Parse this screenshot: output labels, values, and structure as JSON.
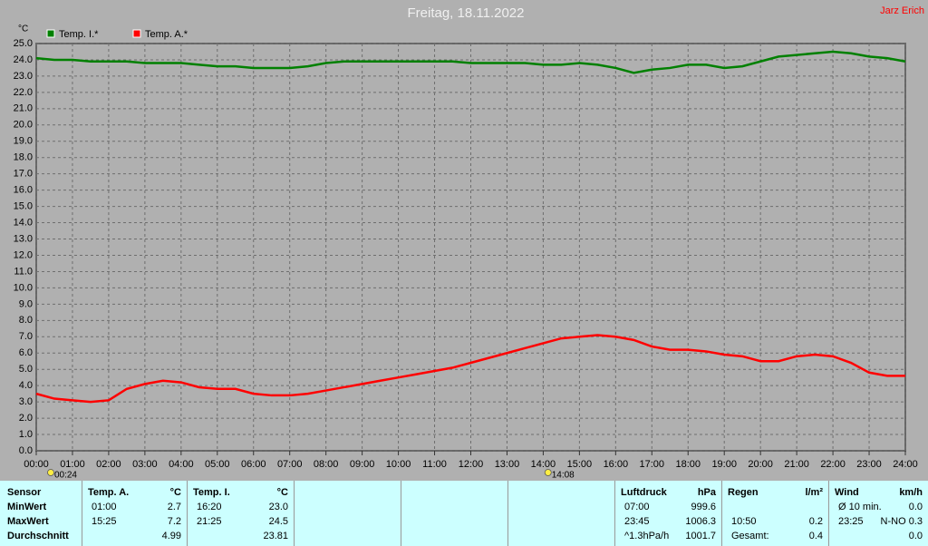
{
  "chart_data": {
    "type": "line",
    "title": "Freitag, 18.11.2022",
    "author": "Jarz Erich",
    "y_unit": "°C",
    "grid": true,
    "x": [
      0,
      0.5,
      1,
      1.5,
      2,
      2.5,
      3,
      3.5,
      4,
      4.5,
      5,
      5.5,
      6,
      6.5,
      7,
      7.5,
      8,
      8.5,
      9,
      9.5,
      10,
      10.5,
      11,
      11.5,
      12,
      12.5,
      13,
      13.5,
      14,
      14.5,
      15,
      15.5,
      16,
      16.5,
      17,
      17.5,
      18,
      18.5,
      19,
      19.5,
      20,
      20.5,
      21,
      21.5,
      22,
      22.5,
      23,
      23.5,
      24
    ],
    "series": [
      {
        "name": "Temp. I.*",
        "color": "#008000",
        "values": [
          24.1,
          24.0,
          24.0,
          23.9,
          23.9,
          23.9,
          23.8,
          23.8,
          23.8,
          23.7,
          23.6,
          23.6,
          23.5,
          23.5,
          23.5,
          23.6,
          23.8,
          23.9,
          23.9,
          23.9,
          23.9,
          23.9,
          23.9,
          23.9,
          23.8,
          23.8,
          23.8,
          23.8,
          23.7,
          23.7,
          23.8,
          23.7,
          23.5,
          23.2,
          23.4,
          23.5,
          23.7,
          23.7,
          23.5,
          23.6,
          23.9,
          24.2,
          24.3,
          24.4,
          24.5,
          24.4,
          24.2,
          24.1,
          23.9
        ]
      },
      {
        "name": "Temp. A.*",
        "color": "#ff0000",
        "values": [
          3.5,
          3.2,
          3.1,
          3.0,
          3.1,
          3.8,
          4.1,
          4.3,
          4.2,
          3.9,
          3.8,
          3.8,
          3.5,
          3.4,
          3.4,
          3.5,
          3.7,
          3.9,
          4.1,
          4.3,
          4.5,
          4.7,
          4.9,
          5.1,
          5.4,
          5.7,
          6.0,
          6.3,
          6.6,
          6.9,
          7.0,
          7.1,
          7.0,
          6.8,
          6.4,
          6.2,
          6.2,
          6.1,
          5.9,
          5.8,
          5.5,
          5.5,
          5.8,
          5.9,
          5.8,
          5.4,
          4.8,
          4.6,
          4.6
        ]
      }
    ],
    "xlim": [
      0,
      24
    ],
    "xticks": [
      {
        "value": 0,
        "label": "00:00"
      },
      {
        "value": 1,
        "label": "01:00"
      },
      {
        "value": 2,
        "label": "02:00"
      },
      {
        "value": 3,
        "label": "03:00"
      },
      {
        "value": 4,
        "label": "04:00"
      },
      {
        "value": 5,
        "label": "05:00"
      },
      {
        "value": 6,
        "label": "06:00"
      },
      {
        "value": 7,
        "label": "07:00"
      },
      {
        "value": 8,
        "label": "08:00"
      },
      {
        "value": 9,
        "label": "09:00"
      },
      {
        "value": 10,
        "label": "10:00"
      },
      {
        "value": 11,
        "label": "11:00"
      },
      {
        "value": 12,
        "label": "12:00"
      },
      {
        "value": 13,
        "label": "13:00"
      },
      {
        "value": 14,
        "label": "14:00"
      },
      {
        "value": 15,
        "label": "15:00"
      },
      {
        "value": 16,
        "label": "16:00"
      },
      {
        "value": 17,
        "label": "17:00"
      },
      {
        "value": 18,
        "label": "18:00"
      },
      {
        "value": 19,
        "label": "19:00"
      },
      {
        "value": 20,
        "label": "20:00"
      },
      {
        "value": 21,
        "label": "21:00"
      },
      {
        "value": 22,
        "label": "22:00"
      },
      {
        "value": 23,
        "label": "23:00"
      },
      {
        "value": 24,
        "label": "24:00"
      }
    ],
    "ylim": [
      0,
      25
    ],
    "yticks": [
      {
        "value": 0,
        "label": "0.0"
      },
      {
        "value": 1,
        "label": "1.0"
      },
      {
        "value": 2,
        "label": "2.0"
      },
      {
        "value": 3,
        "label": "3.0"
      },
      {
        "value": 4,
        "label": "4.0"
      },
      {
        "value": 5,
        "label": "5.0"
      },
      {
        "value": 6,
        "label": "6.0"
      },
      {
        "value": 7,
        "label": "7.0"
      },
      {
        "value": 8,
        "label": "8.0"
      },
      {
        "value": 9,
        "label": "9.0"
      },
      {
        "value": 10,
        "label": "10.0"
      },
      {
        "value": 11,
        "label": "11.0"
      },
      {
        "value": 12,
        "label": "12.0"
      },
      {
        "value": 13,
        "label": "13.0"
      },
      {
        "value": 14,
        "label": "14.0"
      },
      {
        "value": 15,
        "label": "15.0"
      },
      {
        "value": 16,
        "label": "16.0"
      },
      {
        "value": 17,
        "label": "17.0"
      },
      {
        "value": 18,
        "label": "18.0"
      },
      {
        "value": 19,
        "label": "19.0"
      },
      {
        "value": 20,
        "label": "20.0"
      },
      {
        "value": 21,
        "label": "21.0"
      },
      {
        "value": 22,
        "label": "22.0"
      },
      {
        "value": 23,
        "label": "23.0"
      },
      {
        "value": 24,
        "label": "24.0"
      },
      {
        "value": 25,
        "label": "25.0"
      }
    ],
    "markers": [
      {
        "x": 0.4,
        "label": "00:24"
      },
      {
        "x": 14.133,
        "label": "14:08"
      }
    ]
  },
  "stats": {
    "row_labels": [
      "Sensor",
      "MinWert",
      "MaxWert",
      "Durchschnitt"
    ],
    "blocks": [
      {
        "header": [
          "Temp. A.",
          "°C"
        ],
        "rows": [
          [
            "01:00",
            "2.7"
          ],
          [
            "15:25",
            "7.2"
          ],
          [
            null,
            "4.99"
          ]
        ]
      },
      {
        "header": [
          "Temp. I.",
          "°C"
        ],
        "rows": [
          [
            "16:20",
            "23.0"
          ],
          [
            "21:25",
            "24.5"
          ],
          [
            null,
            "23.81"
          ]
        ]
      },
      {
        "header": [
          "Luftdruck",
          "hPa"
        ],
        "rows": [
          [
            "07:00",
            "999.6"
          ],
          [
            "23:45",
            "1006.3"
          ],
          [
            "^1.3hPa/h",
            "1001.7"
          ]
        ]
      },
      {
        "header": [
          "Regen",
          "l/m²"
        ],
        "rows": [
          [
            null,
            null
          ],
          [
            "10:50",
            "0.2"
          ],
          [
            "Gesamt:",
            "0.4"
          ]
        ]
      },
      {
        "header": [
          "Wind",
          "km/h"
        ],
        "rows": [
          [
            "Ø 10 min.",
            "0.0"
          ],
          [
            "23:25",
            "N-NO 0.3"
          ],
          [
            null,
            "0.0"
          ]
        ]
      }
    ]
  }
}
